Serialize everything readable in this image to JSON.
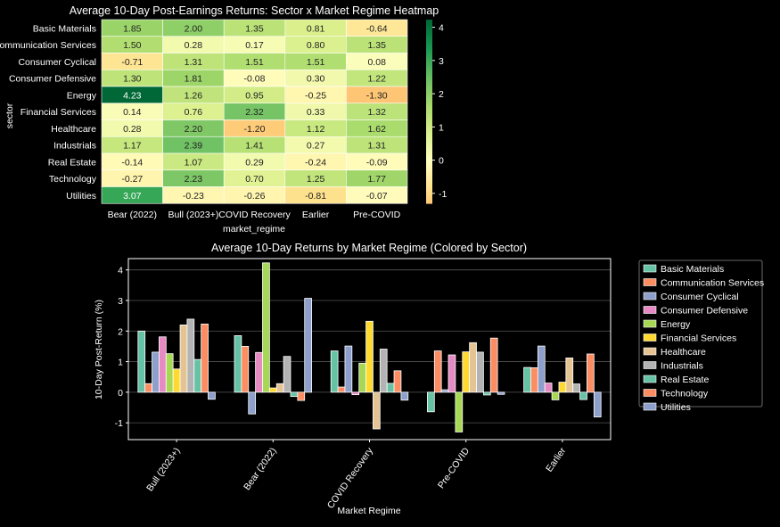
{
  "chart_data": [
    {
      "type": "heatmap",
      "title": "Average 10-Day Post-Earnings Returns: Sector x Market Regime Heatmap",
      "xlabel": "market_regime",
      "ylabel": "sector",
      "x_categories": [
        "Bear (2022)",
        "Bull (2023+)",
        "COVID Recovery",
        "Earlier",
        "Pre-COVID"
      ],
      "y_categories": [
        "Basic Materials",
        "Communication Services",
        "Consumer Cyclical",
        "Consumer Defensive",
        "Energy",
        "Financial Services",
        "Healthcare",
        "Industrials",
        "Real Estate",
        "Technology",
        "Utilities"
      ],
      "values": [
        [
          1.85,
          2.0,
          1.35,
          0.81,
          -0.64
        ],
        [
          1.5,
          0.28,
          0.17,
          0.8,
          1.35
        ],
        [
          -0.71,
          1.31,
          1.51,
          1.51,
          0.08
        ],
        [
          1.3,
          1.81,
          -0.08,
          0.3,
          1.22
        ],
        [
          4.23,
          1.26,
          0.95,
          -0.25,
          -1.3
        ],
        [
          0.14,
          0.76,
          2.32,
          0.33,
          1.32
        ],
        [
          0.28,
          2.2,
          -1.2,
          1.12,
          1.62
        ],
        [
          1.17,
          2.39,
          1.41,
          0.27,
          1.31
        ],
        [
          -0.14,
          1.07,
          0.29,
          -0.24,
          -0.09
        ],
        [
          -0.27,
          2.23,
          0.7,
          1.25,
          1.77
        ],
        [
          3.07,
          -0.23,
          -0.26,
          -0.81,
          -0.07
        ]
      ],
      "colormap": "RdYlGn",
      "center": 0,
      "colorbar_range": [
        -1.3,
        4.23
      ],
      "colorbar_ticks": [
        "-1",
        "0",
        "1",
        "2",
        "3",
        "4"
      ],
      "annotated": true
    },
    {
      "type": "bar",
      "title": "Average 10-Day Returns by Market Regime (Colored by Sector)",
      "xlabel": "Market Regime",
      "ylabel": "10-Day Post-Return (%)",
      "categories": [
        "Bull (2023+)",
        "Bear (2022)",
        "COVID Recovery",
        "Pre-COVID",
        "Earlier"
      ],
      "ylim": [
        -1.55,
        4.37
      ],
      "yticks": [
        "-1",
        "0",
        "1",
        "2",
        "3",
        "4"
      ],
      "grid": true,
      "legend_position": "outside-right",
      "series": [
        {
          "name": "Basic Materials",
          "color": "#66c2a5",
          "values": [
            2.0,
            1.85,
            1.35,
            -0.64,
            0.81
          ]
        },
        {
          "name": "Communication Services",
          "color": "#fc8d62",
          "values": [
            0.28,
            1.5,
            0.17,
            1.35,
            0.8
          ]
        },
        {
          "name": "Consumer Cyclical",
          "color": "#8da0cb",
          "values": [
            1.31,
            -0.71,
            1.51,
            0.08,
            1.51
          ]
        },
        {
          "name": "Consumer Defensive",
          "color": "#e78ac3",
          "values": [
            1.81,
            1.3,
            -0.08,
            1.22,
            0.3
          ]
        },
        {
          "name": "Energy",
          "color": "#a6d854",
          "values": [
            1.26,
            4.23,
            0.95,
            -1.3,
            -0.25
          ]
        },
        {
          "name": "Financial Services",
          "color": "#ffd92f",
          "values": [
            0.76,
            0.14,
            2.32,
            1.32,
            0.33
          ]
        },
        {
          "name": "Healthcare",
          "color": "#e5c494",
          "values": [
            2.2,
            0.28,
            -1.2,
            1.62,
            1.12
          ]
        },
        {
          "name": "Industrials",
          "color": "#b3b3b3",
          "values": [
            2.39,
            1.17,
            1.41,
            1.31,
            0.27
          ]
        },
        {
          "name": "Real Estate",
          "color": "#66c2a5",
          "values": [
            1.07,
            -0.14,
            0.29,
            -0.09,
            -0.24
          ]
        },
        {
          "name": "Technology",
          "color": "#fc8d62",
          "values": [
            2.23,
            -0.27,
            0.7,
            1.77,
            1.25
          ]
        },
        {
          "name": "Utilities",
          "color": "#8da0cb",
          "values": [
            -0.23,
            3.07,
            -0.26,
            -0.07,
            -0.81
          ]
        }
      ]
    }
  ]
}
